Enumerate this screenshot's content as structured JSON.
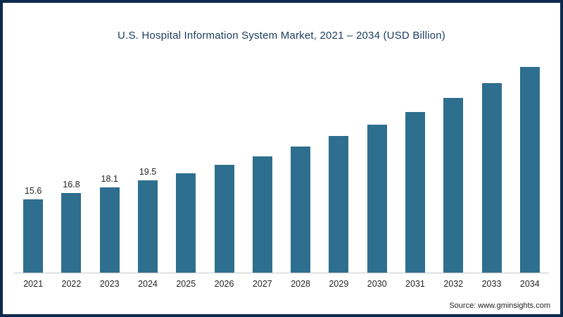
{
  "title": "U.S. Hospital Information System Market, 2021 – 2034 (USD Billion)",
  "source": "Source: www.gminsights.com",
  "colors": {
    "bar": "#2e6e8e",
    "border": "#0d2a4d",
    "title": "#1a3a5c",
    "axis": "#c9c9c9",
    "label": "#222222"
  },
  "chart_data": {
    "type": "bar",
    "title": "U.S. Hospital Information System Market, 2021 – 2034 (USD Billion)",
    "categories": [
      "2021",
      "2022",
      "2023",
      "2024",
      "2025",
      "2026",
      "2027",
      "2028",
      "2029",
      "2030",
      "2031",
      "2032",
      "2033",
      "2034"
    ],
    "values": [
      15.6,
      16.8,
      18.1,
      19.5,
      21.1,
      22.8,
      24.7,
      26.8,
      29.0,
      31.4,
      34.1,
      37.0,
      40.2,
      43.6
    ],
    "data_labels": [
      "15.6",
      "16.8",
      "18.1",
      "19.5",
      null,
      null,
      null,
      null,
      null,
      null,
      null,
      null,
      null,
      null
    ],
    "xlabel": "",
    "ylabel": "USD Billion",
    "ylim": [
      0,
      45
    ],
    "grid": false,
    "legend": "none",
    "bar_color": "#2e6e8e"
  }
}
